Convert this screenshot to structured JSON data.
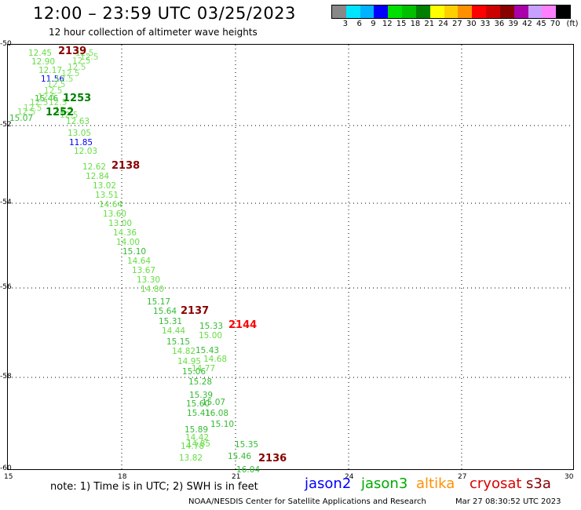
{
  "header": {
    "title": "12:00 – 23:59 UTC 03/25/2023",
    "subtitle": "12 hour collection of altimeter wave heights"
  },
  "legend": {
    "unit": "(ft)",
    "ticks": [
      "3",
      "6",
      "9",
      "12",
      "15",
      "18",
      "21",
      "24",
      "27",
      "30",
      "33",
      "36",
      "39",
      "42",
      "45",
      "70"
    ],
    "colors": [
      "#888888",
      "#00e5ff",
      "#00b2ff",
      "#0000ff",
      "#00e000",
      "#00c000",
      "#008000",
      "#ffff00",
      "#ffd000",
      "#ff9000",
      "#ff0000",
      "#cc0000",
      "#880000",
      "#aa00aa",
      "#c8a0ff",
      "#ff80ff",
      "#000000"
    ]
  },
  "axes": {
    "lat_labels": [
      "-50",
      "-52",
      "-54",
      "-56",
      "-58",
      "-60"
    ],
    "lon_labels": [
      "15",
      "18",
      "21",
      "24",
      "27",
      "30"
    ]
  },
  "tracks": [
    {
      "label": "2139",
      "color": "#880000"
    },
    {
      "label": "1253",
      "color": "#008000"
    },
    {
      "label": "1252",
      "color": "#008000"
    },
    {
      "label": "2138",
      "color": "#880000"
    },
    {
      "label": "2137",
      "color": "#880000"
    },
    {
      "label": "2144",
      "color": "#ff0000"
    },
    {
      "label": "2136",
      "color": "#880000"
    }
  ],
  "values_text": [
    {
      "t": "12.45",
      "c": "#66dd44"
    },
    {
      "t": "12.90",
      "c": "#66dd44"
    },
    {
      "t": "12.17",
      "c": "#66dd44"
    },
    {
      "t": "11.56",
      "c": "#0000ff"
    },
    {
      "t": "15.46",
      "c": "#33bb33"
    },
    {
      "t": "15.07",
      "c": "#33bb33"
    },
    {
      "t": "12.63",
      "c": "#66dd44"
    },
    {
      "t": "13.05",
      "c": "#66dd44"
    },
    {
      "t": "11.85",
      "c": "#0000ff"
    },
    {
      "t": "12.03",
      "c": "#66dd44"
    },
    {
      "t": "12.62",
      "c": "#66dd44"
    },
    {
      "t": "12.84",
      "c": "#66dd44"
    },
    {
      "t": "13.02",
      "c": "#66dd44"
    },
    {
      "t": "13.51",
      "c": "#66dd44"
    },
    {
      "t": "14.64",
      "c": "#66dd44"
    },
    {
      "t": "13.60",
      "c": "#66dd44"
    },
    {
      "t": "13.00",
      "c": "#66dd44"
    },
    {
      "t": "14.36",
      "c": "#66dd44"
    },
    {
      "t": "14.00",
      "c": "#66dd44"
    },
    {
      "t": "15.10",
      "c": "#33bb33"
    },
    {
      "t": "14.64",
      "c": "#66dd44"
    },
    {
      "t": "13.67",
      "c": "#66dd44"
    },
    {
      "t": "13.30",
      "c": "#66dd44"
    },
    {
      "t": "14.80",
      "c": "#66dd44"
    },
    {
      "t": "15.17",
      "c": "#33bb33"
    },
    {
      "t": "15.64",
      "c": "#33bb33"
    },
    {
      "t": "15.31",
      "c": "#33bb33"
    },
    {
      "t": "14.44",
      "c": "#66dd44"
    },
    {
      "t": "15.15",
      "c": "#33bb33"
    },
    {
      "t": "15.33",
      "c": "#33bb33"
    },
    {
      "t": "15.00",
      "c": "#66dd44"
    },
    {
      "t": "14.82",
      "c": "#66dd44"
    },
    {
      "t": "15.43",
      "c": "#33bb33"
    },
    {
      "t": "14.68",
      "c": "#66dd44"
    },
    {
      "t": "14.95",
      "c": "#66dd44"
    },
    {
      "t": "15.06",
      "c": "#33bb33"
    },
    {
      "t": "14.77",
      "c": "#66dd44"
    },
    {
      "t": "15.28",
      "c": "#33bb33"
    },
    {
      "t": "15.39",
      "c": "#33bb33"
    },
    {
      "t": "15.60",
      "c": "#33bb33"
    },
    {
      "t": "15.07",
      "c": "#33bb33"
    },
    {
      "t": "15.41",
      "c": "#33bb33"
    },
    {
      "t": "16.08",
      "c": "#33bb33"
    },
    {
      "t": "15.10",
      "c": "#33bb33"
    },
    {
      "t": "15.89",
      "c": "#33bb33"
    },
    {
      "t": "14.42",
      "c": "#66dd44"
    },
    {
      "t": "14.78",
      "c": "#66dd44"
    },
    {
      "t": "14.85",
      "c": "#66dd44"
    },
    {
      "t": "15.35",
      "c": "#33bb33"
    },
    {
      "t": "15.46",
      "c": "#33bb33"
    },
    {
      "t": "13.82",
      "c": "#66dd44"
    },
    {
      "t": "16.04",
      "c": "#33bb33"
    }
  ],
  "footer": {
    "note": "note: 1) Time is in UTC; 2) SWH is in feet",
    "satellites": [
      {
        "name": "jason2",
        "color": "#0000ff"
      },
      {
        "name": "jason3",
        "color": "#00aa00"
      },
      {
        "name": "altika",
        "color": "#ff9000"
      },
      {
        "name": "cryosat",
        "color": "#dd0000"
      },
      {
        "name": "s3a",
        "color": "#880000"
      }
    ],
    "credit": "NOAA/NESDIS Center for Satellite Applications and Research",
    "timestamp": "Mar 27 08:30:52 UTC 2023"
  }
}
